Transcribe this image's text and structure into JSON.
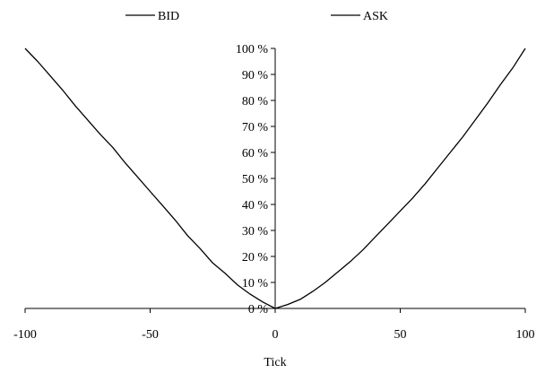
{
  "chart_data": {
    "type": "line",
    "title": "",
    "xlabel": "Tick",
    "ylabel": "",
    "xlim": [
      -100,
      100
    ],
    "ylim": [
      0,
      100
    ],
    "grid": false,
    "legend": "top",
    "x_ticks": [
      "-100",
      "-50",
      "0",
      "50",
      "100"
    ],
    "y_ticks": [
      "0 %",
      "10 %",
      "20 %",
      "30 %",
      "40 %",
      "50 %",
      "60 %",
      "70 %",
      "80 %",
      "90 %",
      "100 %"
    ],
    "series": [
      {
        "name": "BID",
        "color": "#000000",
        "x": [
          0,
          -5,
          -10,
          -15,
          -20,
          -25,
          -30,
          -35,
          -40,
          -45,
          -50,
          -55,
          -60,
          -65,
          -70,
          -75,
          -80,
          -85,
          -90,
          -95,
          -100
        ],
        "y": [
          0,
          2.5,
          5.5,
          9,
          13.5,
          17.5,
          23,
          28,
          34,
          39.5,
          45,
          50.5,
          56,
          62,
          67,
          72.5,
          78,
          84,
          89.5,
          95,
          100
        ]
      },
      {
        "name": "ASK",
        "color": "#000000",
        "x": [
          0,
          5,
          10,
          15,
          20,
          25,
          30,
          35,
          40,
          45,
          50,
          55,
          60,
          65,
          70,
          75,
          80,
          85,
          90,
          95,
          100
        ],
        "y": [
          0,
          1.5,
          3.5,
          6.5,
          10,
          14,
          18,
          22.5,
          27.5,
          32.5,
          37.5,
          42.5,
          48,
          54,
          60,
          66,
          72.5,
          79,
          86,
          92.5,
          100
        ]
      }
    ]
  }
}
